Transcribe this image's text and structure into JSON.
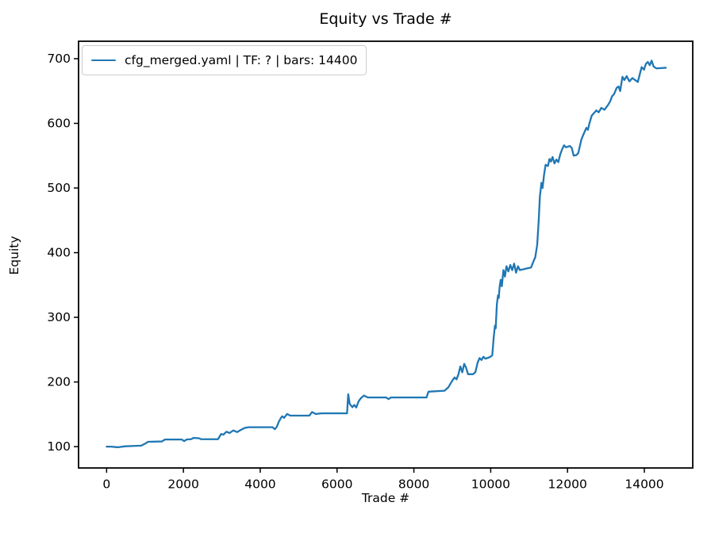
{
  "figure": {
    "background": "#ffffff",
    "text_color": "#000000",
    "spine_color": "#000000"
  },
  "chart_data": {
    "type": "line",
    "title": "Equity vs Trade #",
    "xlabel": "Trade #",
    "ylabel": "Equity",
    "xlim": [
      -730,
      15260
    ],
    "ylim": [
      67,
      727
    ],
    "x_ticks": [
      0,
      2000,
      4000,
      6000,
      8000,
      10000,
      12000,
      14000
    ],
    "y_ticks": [
      100,
      200,
      300,
      400,
      500,
      600,
      700
    ],
    "grid": false,
    "legend": {
      "position": "upper-left",
      "entries": [
        {
          "label": "cfg_merged.yaml | TF: ? | bars: 14400",
          "color": "#1f77b4"
        }
      ]
    },
    "series": [
      {
        "name": "cfg_merged.yaml | TF: ? | bars: 14400",
        "color": "#1f77b4",
        "line_width": 2.3,
        "points": [
          [
            0,
            100
          ],
          [
            120,
            100
          ],
          [
            300,
            99
          ],
          [
            480,
            100.5
          ],
          [
            700,
            101
          ],
          [
            900,
            101.5
          ],
          [
            1000,
            104.5
          ],
          [
            1080,
            107.5
          ],
          [
            1440,
            108
          ],
          [
            1520,
            111
          ],
          [
            1960,
            111
          ],
          [
            2020,
            108.5
          ],
          [
            2080,
            111
          ],
          [
            2200,
            111.5
          ],
          [
            2260,
            113.5
          ],
          [
            2400,
            113
          ],
          [
            2460,
            111.5
          ],
          [
            2900,
            111.5
          ],
          [
            2980,
            119.5
          ],
          [
            3040,
            118.5
          ],
          [
            3120,
            123
          ],
          [
            3200,
            121
          ],
          [
            3300,
            125
          ],
          [
            3400,
            122.5
          ],
          [
            3500,
            126
          ],
          [
            3600,
            129
          ],
          [
            3700,
            130
          ],
          [
            4320,
            130
          ],
          [
            4380,
            127
          ],
          [
            4430,
            130.5
          ],
          [
            4480,
            138
          ],
          [
            4530,
            143.5
          ],
          [
            4570,
            147
          ],
          [
            4620,
            144.5
          ],
          [
            4700,
            150.5
          ],
          [
            4780,
            148
          ],
          [
            5280,
            148
          ],
          [
            5350,
            153.5
          ],
          [
            5440,
            150.5
          ],
          [
            5600,
            151.5
          ],
          [
            6260,
            151.5
          ],
          [
            6290,
            181
          ],
          [
            6330,
            166
          ],
          [
            6400,
            161
          ],
          [
            6450,
            164.5
          ],
          [
            6500,
            160.5
          ],
          [
            6560,
            170
          ],
          [
            6620,
            175
          ],
          [
            6700,
            179
          ],
          [
            6800,
            176
          ],
          [
            7280,
            176
          ],
          [
            7340,
            173.5
          ],
          [
            7400,
            176
          ],
          [
            8330,
            176
          ],
          [
            8380,
            185
          ],
          [
            8800,
            186.5
          ],
          [
            8900,
            192
          ],
          [
            8960,
            198
          ],
          [
            9010,
            203
          ],
          [
            9060,
            207
          ],
          [
            9110,
            204
          ],
          [
            9160,
            212
          ],
          [
            9210,
            224
          ],
          [
            9260,
            215
          ],
          [
            9310,
            228
          ],
          [
            9360,
            222
          ],
          [
            9410,
            212
          ],
          [
            9540,
            212
          ],
          [
            9600,
            215
          ],
          [
            9660,
            230
          ],
          [
            9710,
            237
          ],
          [
            9760,
            234
          ],
          [
            9810,
            239
          ],
          [
            9860,
            236
          ],
          [
            9960,
            238
          ],
          [
            10040,
            241
          ],
          [
            10080,
            270
          ],
          [
            10110,
            287
          ],
          [
            10130,
            283
          ],
          [
            10160,
            320
          ],
          [
            10190,
            334
          ],
          [
            10210,
            330
          ],
          [
            10230,
            346
          ],
          [
            10260,
            358
          ],
          [
            10290,
            348
          ],
          [
            10330,
            373
          ],
          [
            10370,
            363
          ],
          [
            10410,
            379
          ],
          [
            10460,
            371
          ],
          [
            10510,
            381
          ],
          [
            10560,
            373
          ],
          [
            10610,
            383
          ],
          [
            10660,
            369
          ],
          [
            10710,
            379
          ],
          [
            10760,
            373
          ],
          [
            10900,
            375
          ],
          [
            11050,
            377
          ],
          [
            11110,
            386
          ],
          [
            11160,
            393
          ],
          [
            11210,
            412
          ],
          [
            11250,
            450
          ],
          [
            11280,
            487
          ],
          [
            11300,
            497
          ],
          [
            11320,
            508
          ],
          [
            11350,
            500
          ],
          [
            11390,
            521
          ],
          [
            11430,
            536
          ],
          [
            11490,
            534
          ],
          [
            11530,
            545
          ],
          [
            11570,
            541
          ],
          [
            11610,
            548
          ],
          [
            11660,
            538
          ],
          [
            11710,
            544
          ],
          [
            11760,
            540
          ],
          [
            11810,
            552
          ],
          [
            11860,
            560
          ],
          [
            11910,
            566
          ],
          [
            11960,
            563
          ],
          [
            12060,
            565
          ],
          [
            12110,
            562
          ],
          [
            12160,
            550
          ],
          [
            12230,
            551
          ],
          [
            12280,
            554
          ],
          [
            12360,
            575
          ],
          [
            12430,
            585
          ],
          [
            12490,
            593
          ],
          [
            12530,
            590
          ],
          [
            12570,
            600
          ],
          [
            12630,
            612
          ],
          [
            12690,
            616
          ],
          [
            12750,
            620
          ],
          [
            12810,
            617
          ],
          [
            12880,
            624
          ],
          [
            12960,
            621
          ],
          [
            13050,
            628
          ],
          [
            13110,
            634
          ],
          [
            13160,
            642
          ],
          [
            13210,
            645
          ],
          [
            13280,
            655
          ],
          [
            13330,
            657
          ],
          [
            13370,
            650
          ],
          [
            13430,
            672
          ],
          [
            13480,
            667
          ],
          [
            13540,
            673
          ],
          [
            13610,
            665
          ],
          [
            13690,
            670
          ],
          [
            13760,
            667
          ],
          [
            13830,
            664
          ],
          [
            13890,
            678
          ],
          [
            13930,
            687
          ],
          [
            13990,
            683
          ],
          [
            14040,
            692
          ],
          [
            14090,
            695
          ],
          [
            14140,
            690
          ],
          [
            14190,
            697
          ],
          [
            14240,
            688
          ],
          [
            14310,
            685
          ],
          [
            14560,
            686
          ]
        ]
      }
    ]
  }
}
